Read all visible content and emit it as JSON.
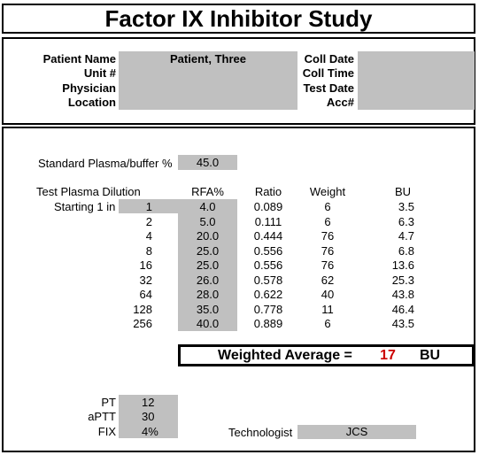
{
  "title": "Factor IX Inhibitor Study",
  "patient": {
    "labels": [
      "Patient Name",
      "Unit #",
      "Physician",
      "Location"
    ],
    "name_value": "Patient, Three",
    "coll_labels": [
      "Coll Date",
      "Coll Time",
      "Test Date",
      "Acc#"
    ]
  },
  "standard_plasma": {
    "label": "Standard Plasma/buffer %",
    "value": "45.0"
  },
  "table": {
    "headers": {
      "dilution": "Test Plasma Dilution",
      "rfa": "RFA%",
      "ratio": "Ratio",
      "weight": "Weight",
      "bu": "BU"
    },
    "starting_label": "Starting 1 in",
    "rows": [
      {
        "dilution": "1",
        "rfa": "4.0",
        "ratio": "0.089",
        "weight": "6",
        "bu": "3.5"
      },
      {
        "dilution": "2",
        "rfa": "5.0",
        "ratio": "0.111",
        "weight": "6",
        "bu": "6.3"
      },
      {
        "dilution": "4",
        "rfa": "20.0",
        "ratio": "0.444",
        "weight": "76",
        "bu": "4.7"
      },
      {
        "dilution": "8",
        "rfa": "25.0",
        "ratio": "0.556",
        "weight": "76",
        "bu": "6.8"
      },
      {
        "dilution": "16",
        "rfa": "25.0",
        "ratio": "0.556",
        "weight": "76",
        "bu": "13.6"
      },
      {
        "dilution": "32",
        "rfa": "26.0",
        "ratio": "0.578",
        "weight": "62",
        "bu": "25.3"
      },
      {
        "dilution": "64",
        "rfa": "28.0",
        "ratio": "0.622",
        "weight": "40",
        "bu": "43.8"
      },
      {
        "dilution": "128",
        "rfa": "35.0",
        "ratio": "0.778",
        "weight": "11",
        "bu": "46.4"
      },
      {
        "dilution": "256",
        "rfa": "40.0",
        "ratio": "0.889",
        "weight": "6",
        "bu": "43.5"
      }
    ]
  },
  "weighted_average": {
    "label": "Weighted Average =",
    "value": "17",
    "unit": "BU",
    "value_color": "#cc0000"
  },
  "coag": [
    {
      "label": "PT",
      "value": "12"
    },
    {
      "label": "aPTT",
      "value": "30"
    },
    {
      "label": "FIX",
      "value": "4%"
    }
  ],
  "technologist": {
    "label": "Technologist",
    "value": "JCS"
  }
}
